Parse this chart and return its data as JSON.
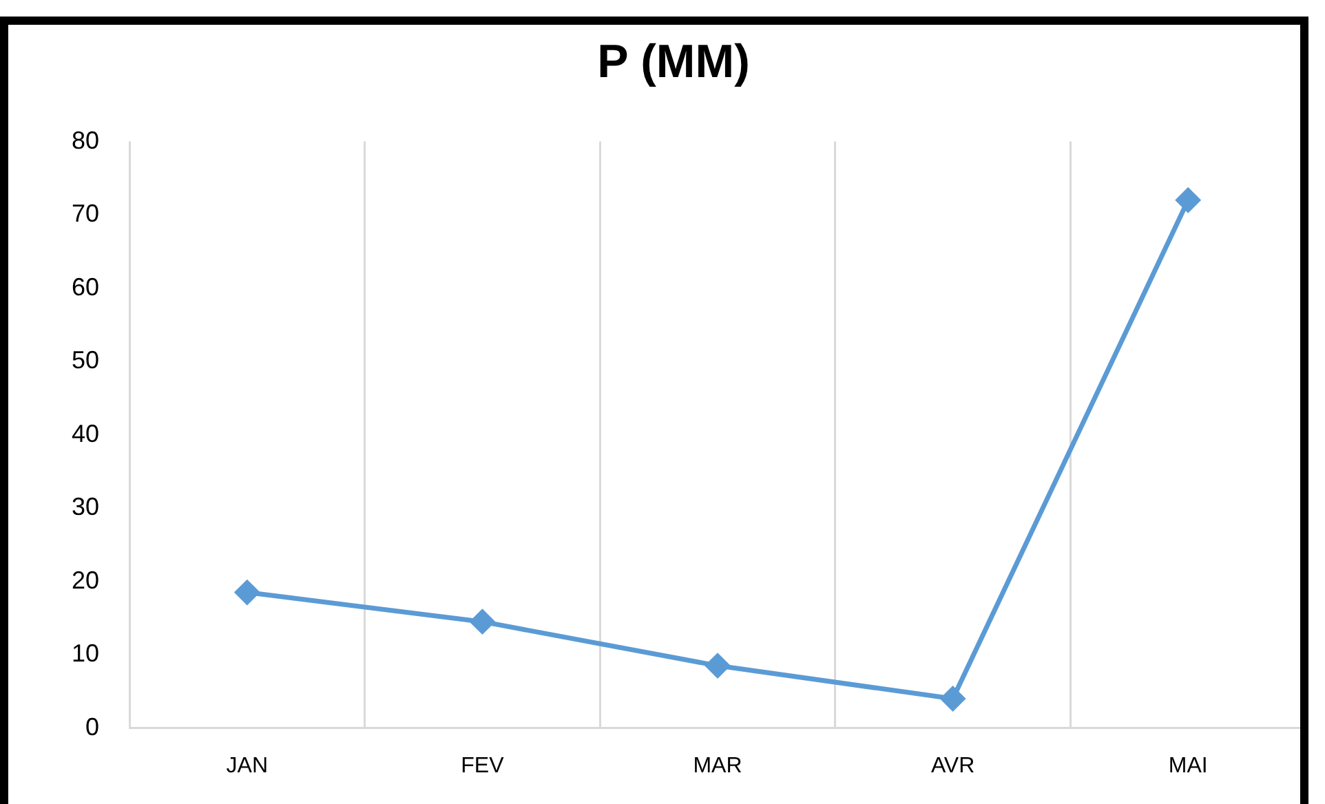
{
  "chart_data": {
    "type": "line",
    "title": "P (MM)",
    "categories": [
      "JAN",
      "FEV",
      "MAR",
      "AVR",
      "MAI"
    ],
    "series": [
      {
        "color": "#5b9bd5",
        "values": [
          18.5,
          14.5,
          8.5,
          4,
          72
        ]
      }
    ],
    "ylim": [
      0,
      80
    ],
    "yticks": [
      0,
      10,
      20,
      30,
      40,
      50,
      60,
      70,
      80
    ],
    "grid": "x",
    "legend": false,
    "marker": "diamond",
    "line_style": "solid"
  }
}
